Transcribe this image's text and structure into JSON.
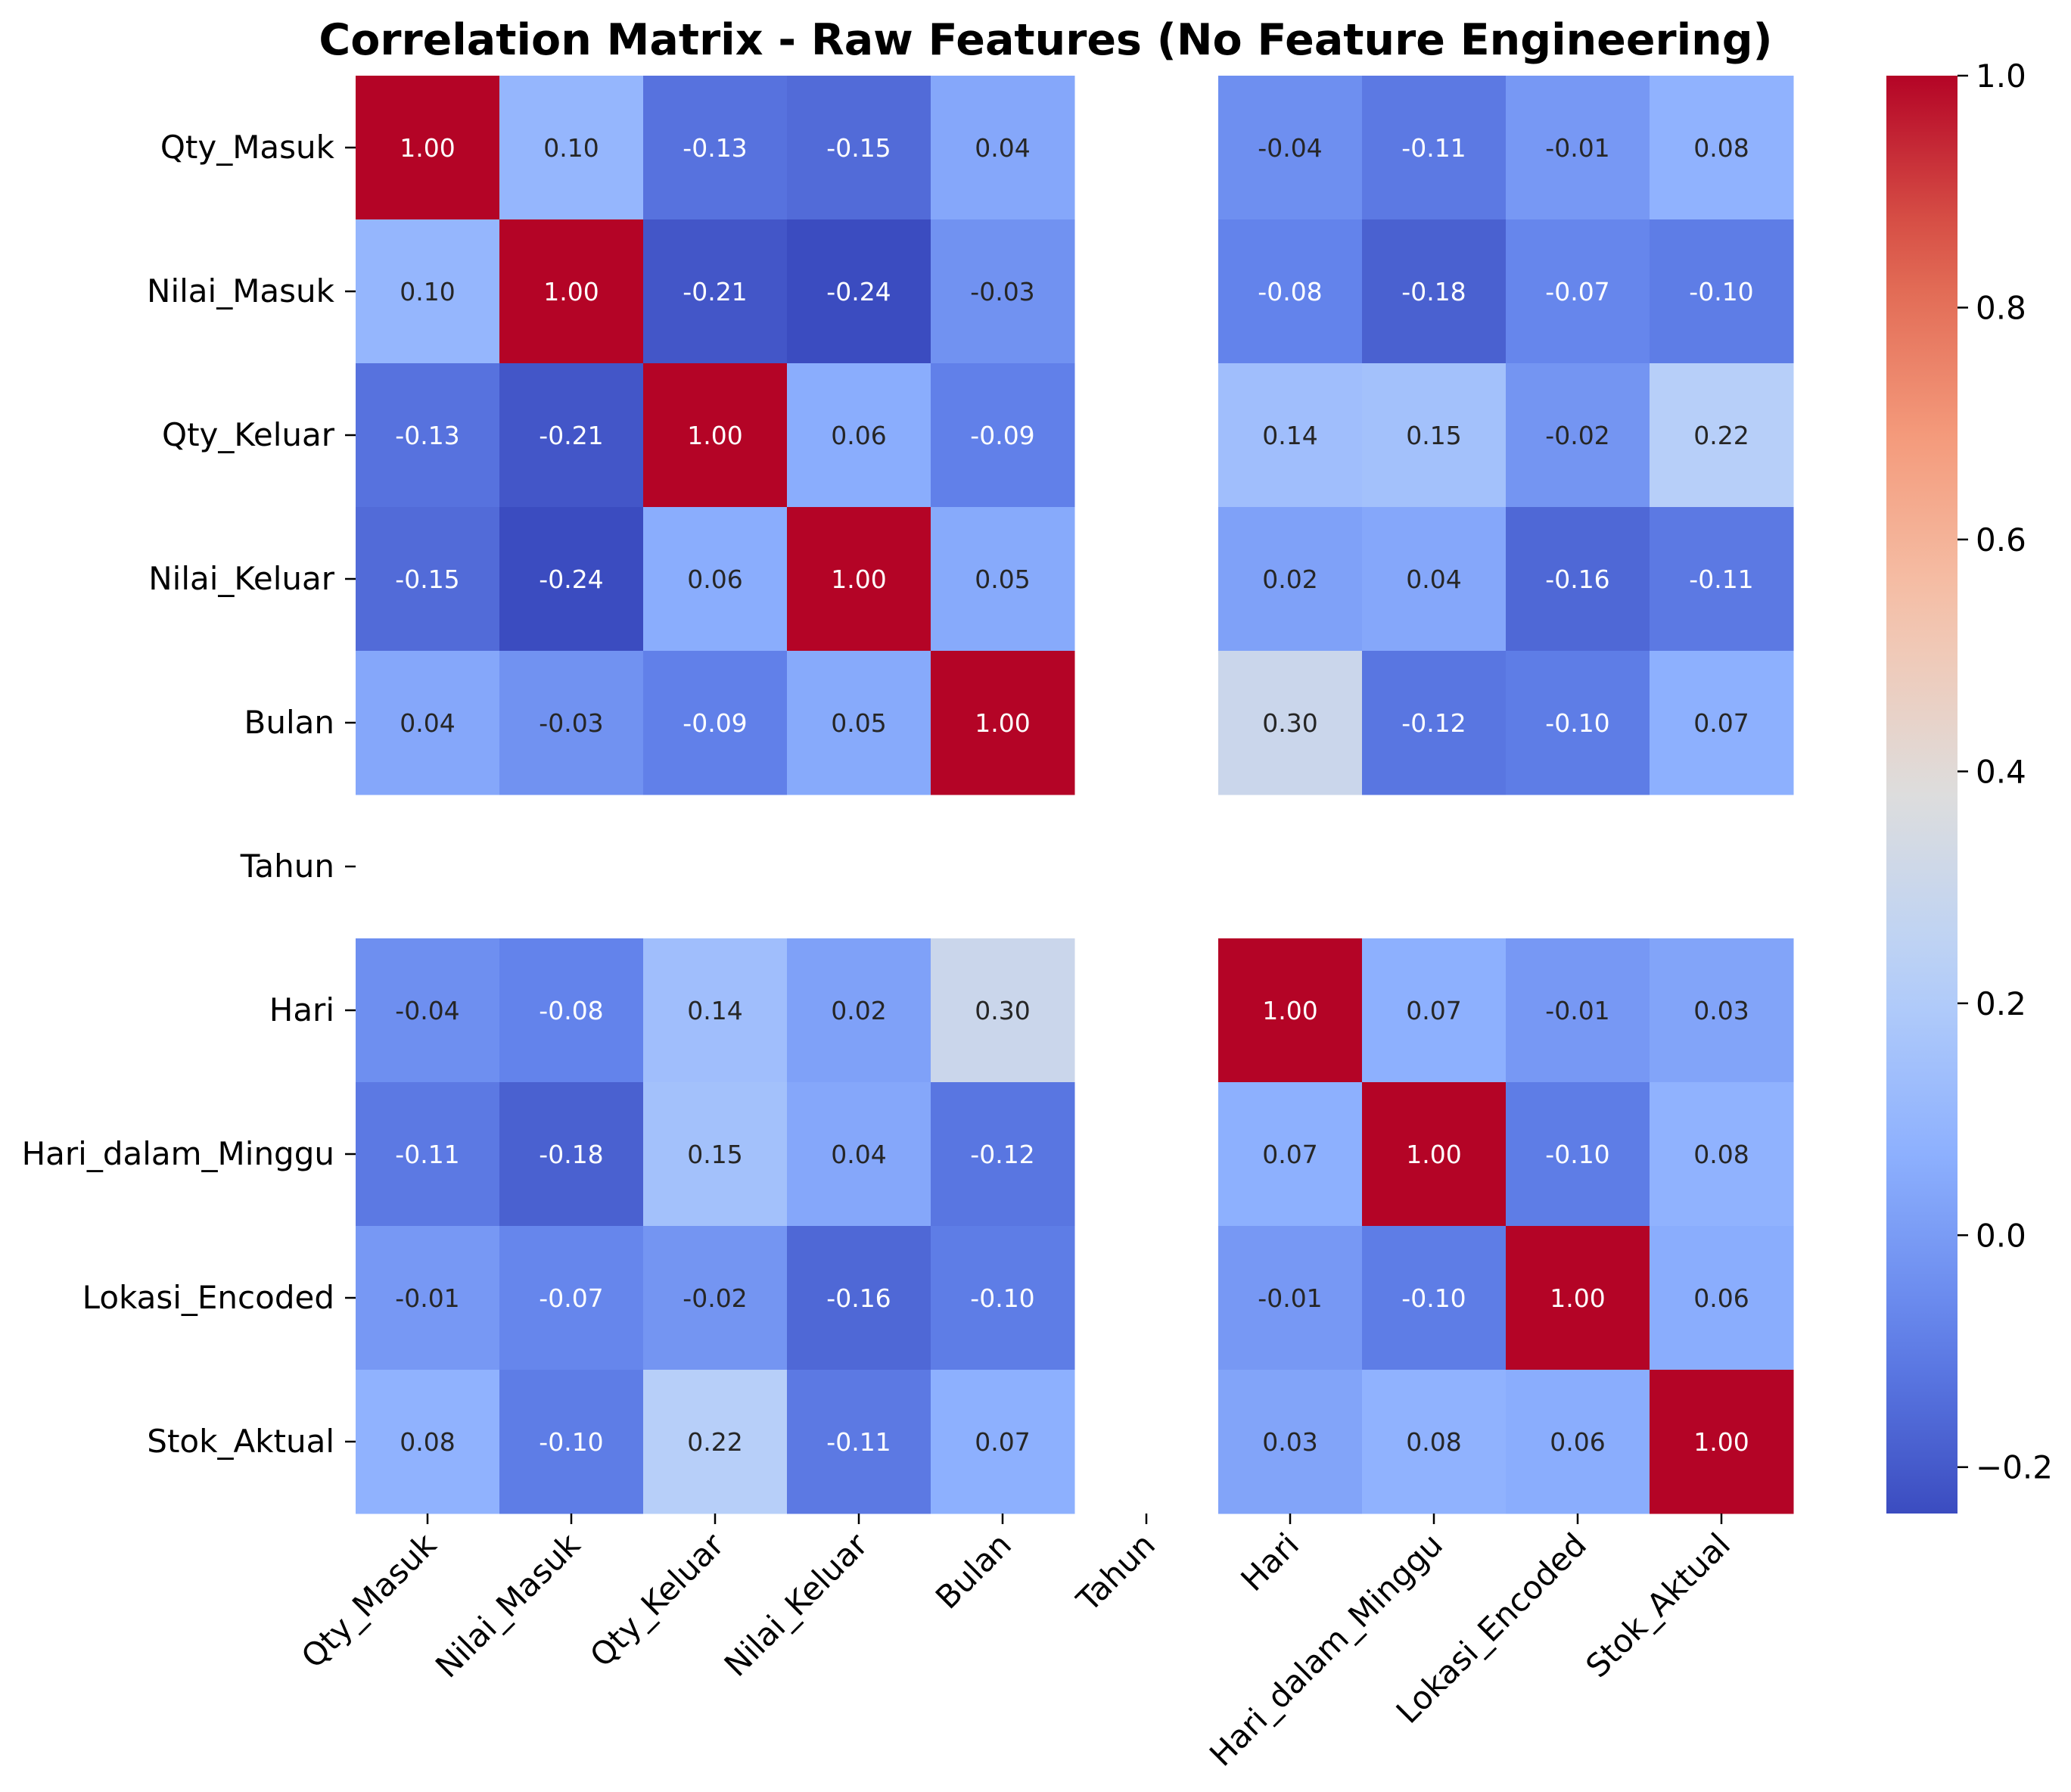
{
  "chart_data": {
    "type": "heatmap",
    "title": "Correlation Matrix - Raw Features (No Feature Engineering)",
    "row_labels": [
      "Qty_Masuk",
      "Nilai_Masuk",
      "Qty_Keluar",
      "Nilai_Keluar",
      "Bulan",
      "Tahun",
      "Hari",
      "Hari_dalam_Minggu",
      "Lokasi_Encoded",
      "Stok_Aktual"
    ],
    "col_labels": [
      "Qty_Masuk",
      "Nilai_Masuk",
      "Qty_Keluar",
      "Nilai_Keluar",
      "Bulan",
      "Tahun",
      "Hari",
      "Hari_dalam_Minggu",
      "Lokasi_Encoded",
      "Stok_Aktual"
    ],
    "values": [
      [
        1.0,
        0.1,
        -0.13,
        -0.15,
        0.04,
        null,
        -0.04,
        -0.11,
        -0.01,
        0.08
      ],
      [
        0.1,
        1.0,
        -0.21,
        -0.24,
        -0.03,
        null,
        -0.08,
        -0.18,
        -0.07,
        -0.1
      ],
      [
        -0.13,
        -0.21,
        1.0,
        0.06,
        -0.09,
        null,
        0.14,
        0.15,
        -0.02,
        0.22
      ],
      [
        -0.15,
        -0.24,
        0.06,
        1.0,
        0.05,
        null,
        0.02,
        0.04,
        -0.16,
        -0.11
      ],
      [
        0.04,
        -0.03,
        -0.09,
        0.05,
        1.0,
        null,
        0.3,
        -0.12,
        -0.1,
        0.07
      ],
      [
        null,
        null,
        null,
        null,
        null,
        null,
        null,
        null,
        null,
        null
      ],
      [
        -0.04,
        -0.08,
        0.14,
        0.02,
        0.3,
        null,
        1.0,
        0.07,
        -0.01,
        0.03
      ],
      [
        -0.11,
        -0.18,
        0.15,
        0.04,
        -0.12,
        null,
        0.07,
        1.0,
        -0.1,
        0.08
      ],
      [
        -0.01,
        -0.07,
        -0.02,
        -0.16,
        -0.1,
        null,
        -0.01,
        -0.1,
        1.0,
        0.06
      ],
      [
        0.08,
        -0.1,
        0.22,
        -0.11,
        0.07,
        null,
        0.03,
        0.08,
        0.06,
        1.0
      ]
    ],
    "value_format": "2 decimals",
    "colormap": "coolwarm",
    "vmin": -0.24,
    "vmax": 1.0,
    "colorbar_ticks": [
      1.0,
      0.8,
      0.6,
      0.4,
      0.2,
      0.0,
      -0.2
    ],
    "colorbar_tick_labels": [
      "1.0",
      "0.8",
      "0.6",
      "0.4",
      "0.2",
      "0.0",
      "−0.2"
    ],
    "grid": false,
    "legend": "colorbar-right"
  }
}
